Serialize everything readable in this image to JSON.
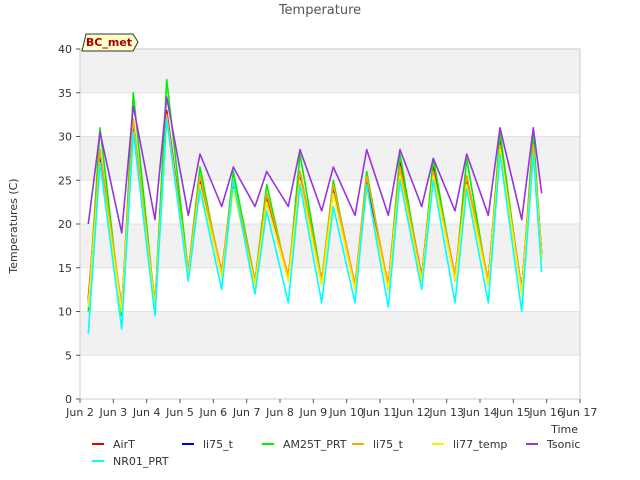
{
  "chart_data": {
    "type": "line",
    "title": "Temperature",
    "xlabel": "Time",
    "ylabel": "Temperatures (C)",
    "station_label": "BC_met",
    "ylim": [
      0,
      40
    ],
    "xlim": [
      "Jun 2",
      "Jun 17"
    ],
    "yticks": [
      0,
      5,
      10,
      15,
      20,
      25,
      30,
      35,
      40
    ],
    "xticks": [
      "Jun 2",
      "Jun 3",
      "Jun 4",
      "Jun 5",
      "Jun 6",
      "Jun 7",
      "Jun 8",
      "Jun 9",
      "Jun 10",
      "Jun 11",
      "Jun 12",
      "Jun 13",
      "Jun 14",
      "Jun 15",
      "Jun 16",
      "Jun 17"
    ],
    "background_bands": "alternating light gray every 5 units",
    "legend_placement": "below plot",
    "sampling": "daily minimum (x.25) and maximum (x.6) approximated",
    "series": [
      {
        "name": "AirT",
        "color": "#dd0000",
        "x": [
          2.25,
          2.6,
          3.25,
          3.6,
          4.25,
          4.6,
          5.25,
          5.6,
          6.25,
          6.6,
          7.25,
          7.6,
          8.25,
          8.6,
          9.25,
          9.6,
          10.25,
          10.6,
          11.25,
          11.6,
          12.25,
          12.6,
          13.25,
          13.6,
          14.25,
          14.6,
          15.25,
          15.6,
          15.85
        ],
        "y": [
          11.5,
          28.0,
          10.5,
          31.5,
          11.0,
          33.0,
          14.5,
          25.5,
          14.5,
          25.0,
          13.5,
          23.0,
          14.0,
          26.0,
          13.5,
          24.5,
          13.0,
          25.0,
          13.0,
          27.0,
          14.0,
          26.5,
          14.0,
          25.5,
          13.5,
          29.5,
          12.5,
          29.0,
          16.5
        ]
      },
      {
        "name": "li75_t",
        "color": "#0000cc",
        "x": [
          2.25,
          2.6,
          3.25,
          3.6,
          4.25,
          4.6,
          5.25,
          5.6,
          6.25,
          6.6,
          7.25,
          7.6,
          8.25,
          8.6,
          9.25,
          9.6,
          10.25,
          10.6,
          11.25,
          11.6,
          12.25,
          12.6,
          13.25,
          13.6,
          14.25,
          14.6,
          15.25,
          15.6,
          15.85
        ],
        "y": [
          11.0,
          27.5,
          10.5,
          31.0,
          11.0,
          32.5,
          14.5,
          25.0,
          14.5,
          24.5,
          13.5,
          22.5,
          14.0,
          25.5,
          13.5,
          24.0,
          13.0,
          24.5,
          13.0,
          26.5,
          14.0,
          26.0,
          14.0,
          25.0,
          13.5,
          29.0,
          12.5,
          28.5,
          16.5
        ]
      },
      {
        "name": "AM25T_PRT",
        "color": "#00ee00",
        "x": [
          2.25,
          2.6,
          3.25,
          3.6,
          4.25,
          4.6,
          5.25,
          5.6,
          6.25,
          6.6,
          7.25,
          7.6,
          8.25,
          8.6,
          9.25,
          9.6,
          10.25,
          10.6,
          11.25,
          11.6,
          12.25,
          12.6,
          13.25,
          13.6,
          14.25,
          14.6,
          15.25,
          15.6,
          15.85
        ],
        "y": [
          10.0,
          31.0,
          9.5,
          35.0,
          10.5,
          36.5,
          14.5,
          26.5,
          14.0,
          26.0,
          13.5,
          24.5,
          13.5,
          28.0,
          13.5,
          25.0,
          12.5,
          26.0,
          12.5,
          28.0,
          13.5,
          27.5,
          13.5,
          27.5,
          13.0,
          30.5,
          12.0,
          30.5,
          16.0
        ]
      },
      {
        "name": "li75_t",
        "color": "#ffa500",
        "x": [
          2.25,
          2.6,
          3.25,
          3.6,
          4.25,
          4.6,
          5.25,
          5.6,
          6.25,
          6.6,
          7.25,
          7.6,
          8.25,
          8.6,
          9.25,
          9.6,
          10.25,
          10.6,
          11.25,
          11.6,
          12.25,
          12.6,
          13.25,
          13.6,
          14.25,
          14.6,
          15.25,
          15.6,
          15.85
        ],
        "y": [
          11.0,
          28.5,
          10.5,
          32.0,
          11.0,
          32.5,
          14.5,
          25.5,
          14.5,
          25.0,
          13.5,
          23.5,
          14.0,
          26.0,
          13.5,
          24.5,
          13.0,
          25.5,
          13.0,
          26.5,
          14.0,
          26.0,
          14.0,
          25.5,
          13.5,
          29.0,
          12.5,
          29.0,
          16.5
        ]
      },
      {
        "name": "li77_temp",
        "color": "#ffee00",
        "x": [
          2.25,
          2.6,
          3.25,
          3.6,
          4.25,
          4.6,
          5.25,
          5.6,
          6.25,
          6.6,
          7.25,
          7.6,
          8.25,
          8.6,
          9.25,
          9.6,
          10.25,
          10.6,
          11.25,
          11.6,
          12.25,
          12.6,
          13.25,
          13.6,
          14.25,
          14.6,
          15.25,
          15.6,
          15.85
        ],
        "y": [
          10.5,
          27.0,
          10.0,
          30.5,
          10.5,
          32.0,
          14.0,
          24.5,
          14.0,
          24.0,
          13.0,
          22.5,
          13.5,
          25.0,
          13.0,
          23.5,
          12.5,
          24.0,
          12.5,
          25.5,
          13.5,
          25.5,
          13.5,
          24.5,
          13.0,
          28.5,
          12.0,
          28.0,
          16.0
        ]
      },
      {
        "name": "Tsonic",
        "color": "#9933dd",
        "x": [
          2.25,
          2.6,
          3.25,
          3.6,
          4.25,
          4.6,
          5.25,
          5.6,
          6.25,
          6.6,
          7.25,
          7.6,
          8.25,
          8.6,
          9.25,
          9.6,
          10.25,
          10.6,
          11.25,
          11.6,
          12.25,
          12.6,
          13.25,
          13.6,
          14.25,
          14.6,
          15.25,
          15.6,
          15.85
        ],
        "y": [
          20.0,
          30.5,
          19.0,
          33.5,
          20.5,
          34.5,
          21.0,
          28.0,
          22.0,
          26.5,
          22.0,
          26.0,
          22.0,
          28.5,
          21.5,
          26.5,
          21.0,
          28.5,
          21.0,
          28.5,
          22.0,
          27.5,
          21.5,
          28.0,
          21.0,
          31.0,
          20.5,
          31.0,
          23.5
        ]
      },
      {
        "name": "NR01_PRT",
        "color": "#00ffff",
        "x": [
          2.25,
          2.6,
          3.25,
          3.6,
          4.25,
          4.6,
          5.25,
          5.6,
          6.25,
          6.6,
          7.25,
          7.6,
          8.25,
          8.6,
          9.25,
          9.6,
          10.25,
          10.6,
          11.25,
          11.6,
          12.25,
          12.6,
          13.25,
          13.6,
          14.25,
          14.6,
          15.25,
          15.6,
          15.85
        ],
        "y": [
          7.5,
          27.0,
          8.0,
          30.5,
          9.5,
          32.0,
          13.5,
          24.0,
          12.5,
          25.0,
          12.0,
          21.5,
          11.0,
          24.5,
          11.0,
          22.0,
          11.0,
          24.5,
          10.5,
          25.0,
          12.5,
          25.0,
          11.0,
          24.0,
          11.0,
          28.0,
          10.0,
          28.0,
          14.5
        ]
      }
    ],
    "legend": [
      {
        "name": "AirT",
        "color": "#dd0000"
      },
      {
        "name": "li75_t",
        "color": "#0000cc"
      },
      {
        "name": "AM25T_PRT",
        "color": "#00ee00"
      },
      {
        "name": "li75_t",
        "color": "#ffa500"
      },
      {
        "name": "li77_temp",
        "color": "#ffee00"
      },
      {
        "name": "Tsonic",
        "color": "#9933dd"
      },
      {
        "name": "NR01_PRT",
        "color": "#00ffff"
      }
    ]
  }
}
